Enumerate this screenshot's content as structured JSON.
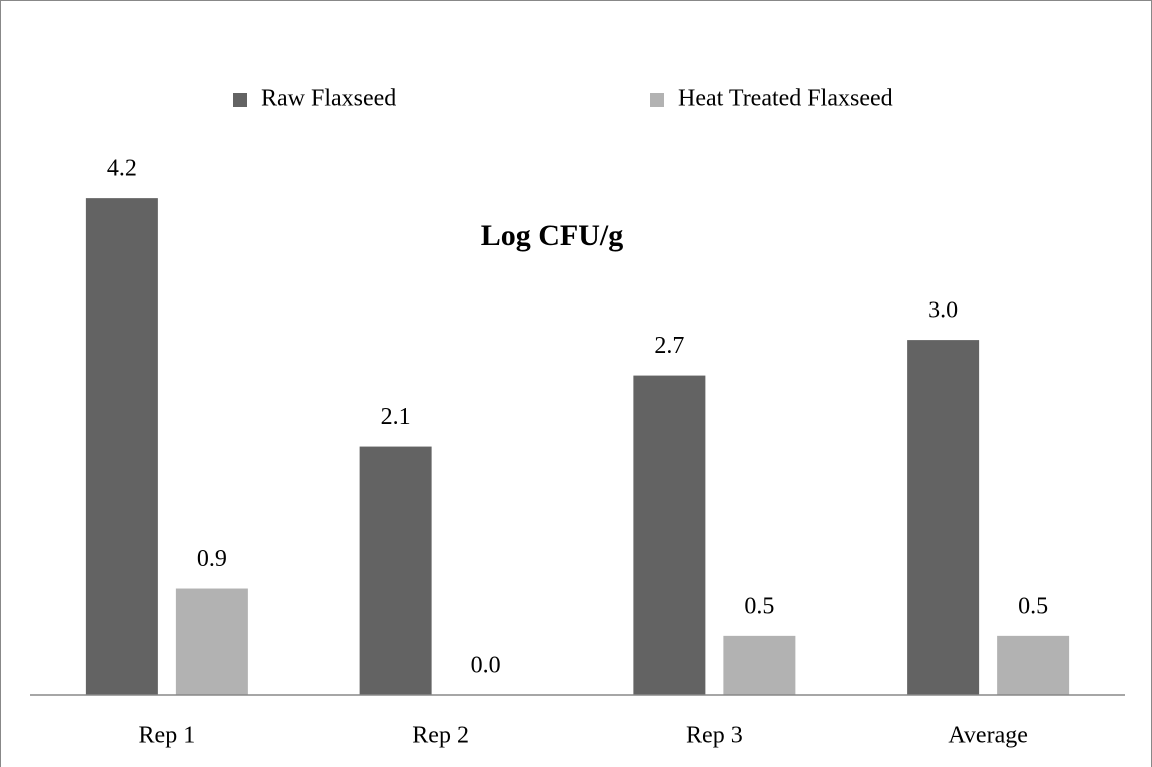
{
  "chart_data": {
    "type": "bar",
    "title": "Log CFU/g",
    "categories": [
      "Rep 1",
      "Rep 2",
      "Rep 3",
      "Average"
    ],
    "series": [
      {
        "name": "Raw Flaxseed",
        "color": "#636363",
        "values": [
          4.2,
          2.1,
          2.7,
          3.0
        ],
        "value_labels": [
          "4.2",
          "2.1",
          "2.7",
          "3.0"
        ]
      },
      {
        "name": "Heat Treated Flaxseed",
        "color": "#b2b2b2",
        "values": [
          0.9,
          0.0,
          0.5,
          0.5
        ],
        "value_labels": [
          "0.9",
          "0.0",
          "0.5",
          "0.5"
        ]
      }
    ],
    "legend": "top"
  }
}
